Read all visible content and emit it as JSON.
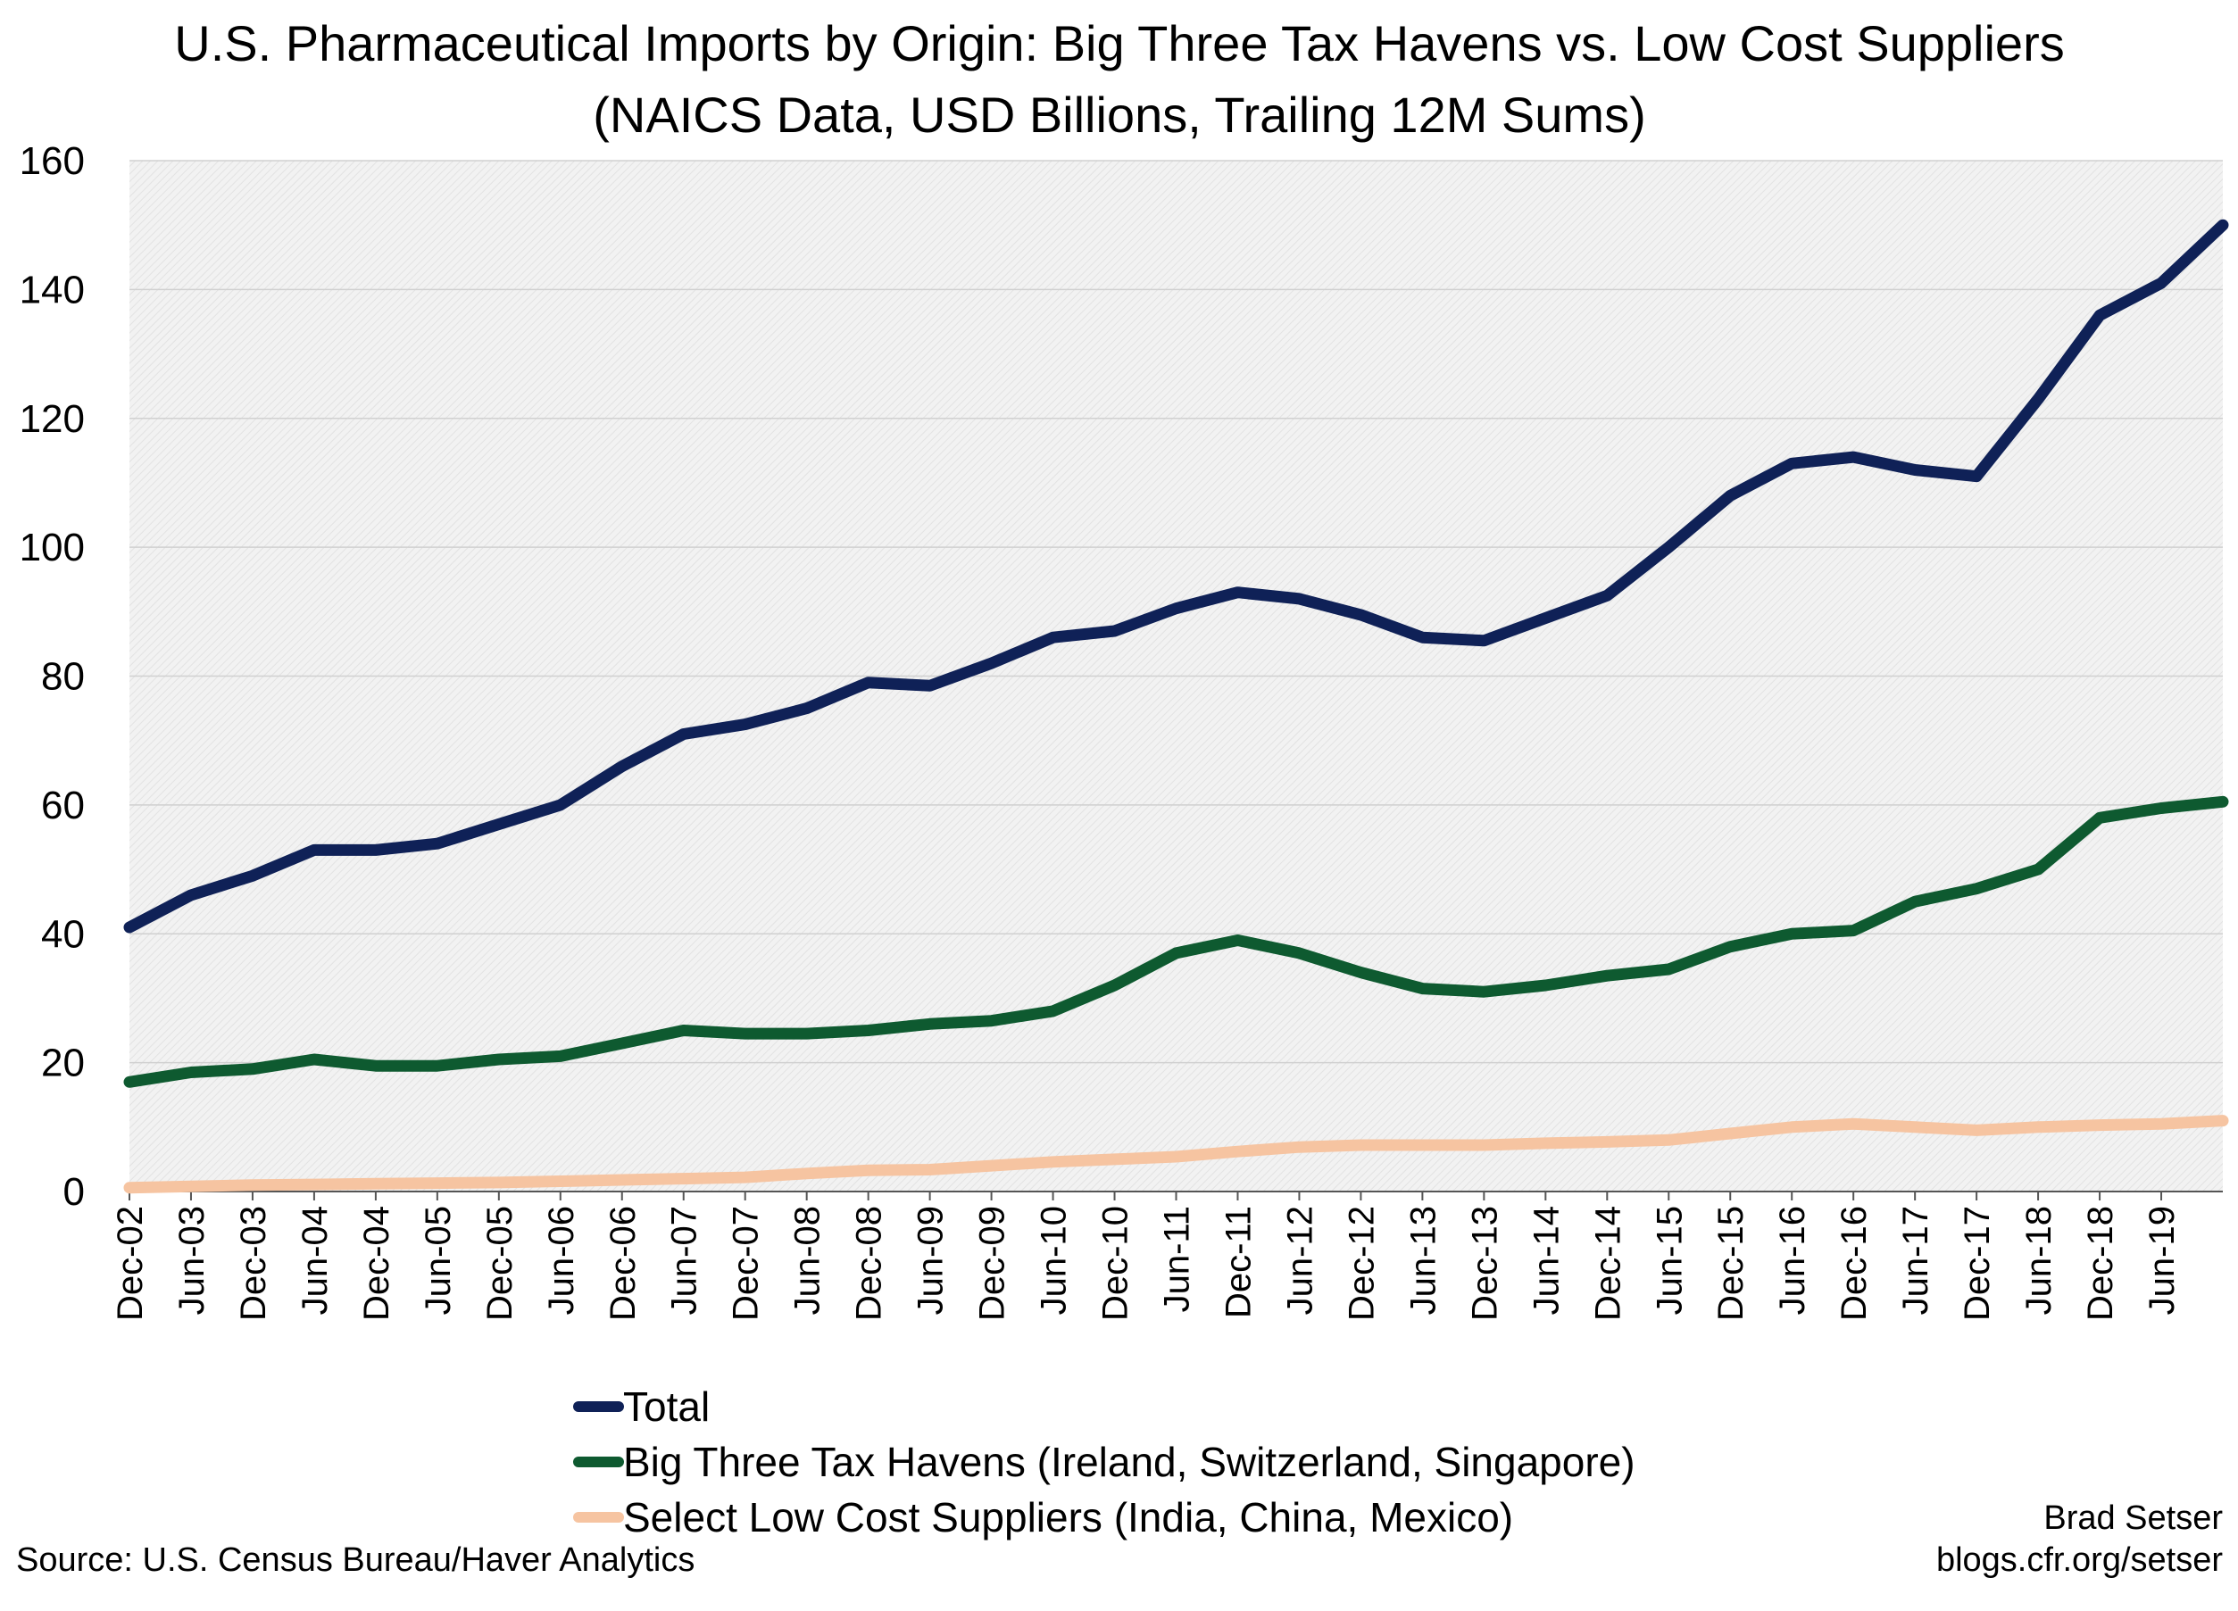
{
  "chart_data": {
    "type": "line",
    "title": "U.S. Pharmaceutical Imports by Origin: Big Three Tax Havens vs. Low Cost Suppliers",
    "subtitle": "(NAICS Data, USD Billions, Trailing 12M Sums)",
    "ylim": [
      0,
      160
    ],
    "y_ticks": [
      "0",
      "20",
      "40",
      "60",
      "80",
      "100",
      "120",
      "140",
      "160"
    ],
    "x_ticks": [
      "Dec-02",
      "Jun-03",
      "Dec-03",
      "Jun-04",
      "Dec-04",
      "Jun-05",
      "Dec-05",
      "Jun-06",
      "Dec-06",
      "Jun-07",
      "Dec-07",
      "Jun-08",
      "Dec-08",
      "Jun-09",
      "Dec-09",
      "Jun-10",
      "Dec-10",
      "Jun-11",
      "Dec-11",
      "Jun-12",
      "Dec-12",
      "Jun-13",
      "Dec-13",
      "Jun-14",
      "Dec-14",
      "Jun-15",
      "Dec-15",
      "Jun-16",
      "Dec-16",
      "Jun-17",
      "Dec-17",
      "Jun-18",
      "Dec-18",
      "Jun-19"
    ],
    "x_range": [
      "Dec-02",
      "Dec-19"
    ],
    "grid": true,
    "legend_position": "bottom",
    "series": [
      {
        "name": "Total",
        "color": "#0f2157",
        "points": [
          [
            "Dec-02",
            41
          ],
          [
            "Jun-03",
            46
          ],
          [
            "Dec-03",
            49
          ],
          [
            "Jun-04",
            53
          ],
          [
            "Dec-04",
            53
          ],
          [
            "Jun-05",
            54
          ],
          [
            "Dec-05",
            57
          ],
          [
            "Jun-06",
            60
          ],
          [
            "Dec-06",
            66
          ],
          [
            "Jun-07",
            71
          ],
          [
            "Dec-07",
            72.5
          ],
          [
            "Jun-08",
            75
          ],
          [
            "Dec-08",
            79
          ],
          [
            "Jun-09",
            78.5
          ],
          [
            "Dec-09",
            82
          ],
          [
            "Jun-10",
            86
          ],
          [
            "Dec-10",
            87
          ],
          [
            "Jun-11",
            90.5
          ],
          [
            "Dec-11",
            93
          ],
          [
            "Jun-12",
            92
          ],
          [
            "Dec-12",
            89.5
          ],
          [
            "Jun-13",
            86
          ],
          [
            "Dec-13",
            85.5
          ],
          [
            "Jun-14",
            89
          ],
          [
            "Dec-14",
            92.5
          ],
          [
            "Jun-15",
            100
          ],
          [
            "Dec-15",
            108
          ],
          [
            "Jun-16",
            113
          ],
          [
            "Dec-16",
            114
          ],
          [
            "Jun-17",
            112
          ],
          [
            "Dec-17",
            111
          ],
          [
            "Jun-18",
            123
          ],
          [
            "Dec-18",
            136
          ],
          [
            "Jun-19",
            141
          ],
          [
            "Dec-19",
            150
          ]
        ]
      },
      {
        "name": "Big Three Tax Havens (Ireland, Switzerland, Singapore)",
        "color": "#0e5a30",
        "points": [
          [
            "Dec-02",
            17
          ],
          [
            "Jun-03",
            18.5
          ],
          [
            "Dec-03",
            19
          ],
          [
            "Jun-04",
            20.5
          ],
          [
            "Dec-04",
            19.5
          ],
          [
            "Jun-05",
            19.5
          ],
          [
            "Dec-05",
            20.5
          ],
          [
            "Jun-06",
            21
          ],
          [
            "Dec-06",
            23
          ],
          [
            "Jun-07",
            25
          ],
          [
            "Dec-07",
            24.5
          ],
          [
            "Jun-08",
            24.5
          ],
          [
            "Dec-08",
            25
          ],
          [
            "Jun-09",
            26
          ],
          [
            "Dec-09",
            26.5
          ],
          [
            "Jun-10",
            28
          ],
          [
            "Dec-10",
            32
          ],
          [
            "Jun-11",
            37
          ],
          [
            "Dec-11",
            39
          ],
          [
            "Jun-12",
            37
          ],
          [
            "Dec-12",
            34
          ],
          [
            "Jun-13",
            31.5
          ],
          [
            "Dec-13",
            31
          ],
          [
            "Jun-14",
            32
          ],
          [
            "Dec-14",
            33.5
          ],
          [
            "Jun-15",
            34.5
          ],
          [
            "Dec-15",
            38
          ],
          [
            "Jun-16",
            40
          ],
          [
            "Dec-16",
            40.5
          ],
          [
            "Jun-17",
            45
          ],
          [
            "Dec-17",
            47
          ],
          [
            "Jun-18",
            50
          ],
          [
            "Dec-18",
            58
          ],
          [
            "Jun-19",
            59.5
          ],
          [
            "Dec-19",
            60.5
          ]
        ]
      },
      {
        "name": "Select Low Cost Suppliers (India, China, Mexico)",
        "color": "#f6c4a1",
        "points": [
          [
            "Dec-02",
            0.6
          ],
          [
            "Jun-03",
            0.8
          ],
          [
            "Dec-03",
            1
          ],
          [
            "Jun-04",
            1.1
          ],
          [
            "Dec-04",
            1.2
          ],
          [
            "Jun-05",
            1.3
          ],
          [
            "Dec-05",
            1.4
          ],
          [
            "Jun-06",
            1.6
          ],
          [
            "Dec-06",
            1.8
          ],
          [
            "Jun-07",
            2
          ],
          [
            "Dec-07",
            2.2
          ],
          [
            "Jun-08",
            2.8
          ],
          [
            "Dec-08",
            3.3
          ],
          [
            "Jun-09",
            3.4
          ],
          [
            "Dec-09",
            4
          ],
          [
            "Jun-10",
            4.6
          ],
          [
            "Dec-10",
            5
          ],
          [
            "Jun-11",
            5.4
          ],
          [
            "Dec-11",
            6.2
          ],
          [
            "Jun-12",
            6.9
          ],
          [
            "Dec-12",
            7.2
          ],
          [
            "Jun-13",
            7.2
          ],
          [
            "Dec-13",
            7.2
          ],
          [
            "Jun-14",
            7.5
          ],
          [
            "Dec-14",
            7.7
          ],
          [
            "Jun-15",
            8
          ],
          [
            "Dec-15",
            9
          ],
          [
            "Jun-16",
            10
          ],
          [
            "Dec-16",
            10.5
          ],
          [
            "Jun-17",
            10
          ],
          [
            "Dec-17",
            9.5
          ],
          [
            "Jun-18",
            10
          ],
          [
            "Dec-18",
            10.3
          ],
          [
            "Jun-19",
            10.5
          ],
          [
            "Dec-19",
            11
          ]
        ]
      }
    ]
  },
  "footer": {
    "source": "Source: U.S. Census Bureau/Haver Analytics",
    "author": "Brad Setser",
    "site": "blogs.cfr.org/setser"
  }
}
